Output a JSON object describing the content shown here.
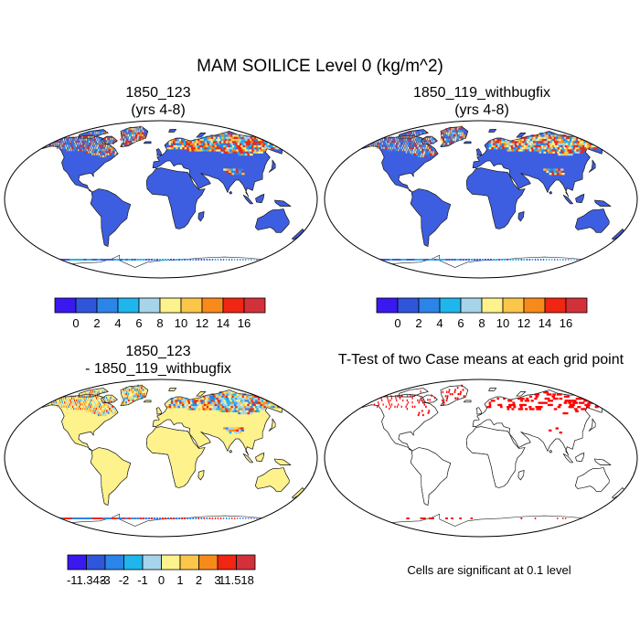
{
  "figure": {
    "title": "MAM SOILICE Level 0 (kg/m^2)",
    "panels": [
      {
        "id": "p1",
        "title_line1": "1850_123",
        "title_line2": "(yrs 4-8)"
      },
      {
        "id": "p2",
        "title_line1": "1850_119_withbugfix",
        "title_line2": "(yrs 4-8)"
      },
      {
        "id": "p3",
        "title_line1": "1850_123",
        "title_line2": "- 1850_119_withbugfix"
      },
      {
        "id": "p4",
        "title_line1": "T-Test of two Case means at each grid point"
      }
    ],
    "significance_note": "Cells are significant at 0.1 level"
  },
  "chart_data": [
    {
      "type": "heatmap",
      "projection": "Robinson",
      "title": "1850_123 (yrs 4-8)",
      "colorbar": {
        "colors": [
          "#3a18f0",
          "#2f55db",
          "#2b84e8",
          "#1fb6ee",
          "#a6d4ea",
          "#fdf28b",
          "#fbc64a",
          "#f88a1c",
          "#f02512",
          "#d2313a"
        ],
        "labels": [
          "0",
          "2",
          "4",
          "6",
          "8",
          "10",
          "12",
          "14",
          "16"
        ]
      },
      "description_values": {
        "ocean": "white",
        "most_land": "0",
        "high_latitudes": "8 to 16+"
      }
    },
    {
      "type": "heatmap",
      "projection": "Robinson",
      "title": "1850_119_withbugfix (yrs 4-8)",
      "colorbar": {
        "colors": [
          "#3a18f0",
          "#2f55db",
          "#2b84e8",
          "#1fb6ee",
          "#a6d4ea",
          "#fdf28b",
          "#fbc64a",
          "#f88a1c",
          "#f02512",
          "#d2313a"
        ],
        "labels": [
          "0",
          "2",
          "4",
          "6",
          "8",
          "10",
          "12",
          "14",
          "16"
        ]
      }
    },
    {
      "type": "heatmap",
      "projection": "Robinson",
      "title": "1850_123 - 1850_119_withbugfix",
      "colorbar": {
        "colors": [
          "#3a18f0",
          "#2f55db",
          "#2b84e8",
          "#1fb6ee",
          "#a6d4ea",
          "#fdf28b",
          "#fbc64a",
          "#f88a1c",
          "#f02512",
          "#d2313a"
        ],
        "labels": [
          "-11.343",
          "-3",
          "-2",
          "-1",
          "0",
          "1",
          "2",
          "3",
          "11.518"
        ]
      }
    },
    {
      "type": "heatmap",
      "projection": "Robinson",
      "title": "T-Test of two Case means at each grid point",
      "significance_level": 0.1,
      "significant_color": "#ff0000"
    }
  ]
}
